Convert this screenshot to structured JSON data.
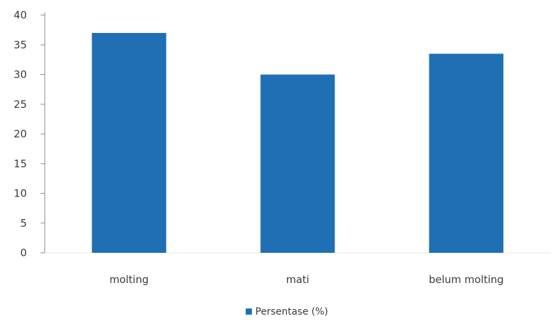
{
  "chart_data": {
    "type": "bar",
    "categories": [
      "molting",
      "mati",
      "belum molting"
    ],
    "series": [
      {
        "name": "Persentase (%)",
        "values": [
          37,
          30,
          33.5
        ]
      }
    ],
    "ylim": [
      0,
      40
    ],
    "yticks": [
      0,
      5,
      10,
      15,
      20,
      25,
      30,
      35,
      40
    ],
    "grid": false,
    "legend": "bottom",
    "colors": {
      "bar": "#1f6fb5",
      "axis": "#8a8a8a",
      "text": "#3a3a3a"
    }
  }
}
